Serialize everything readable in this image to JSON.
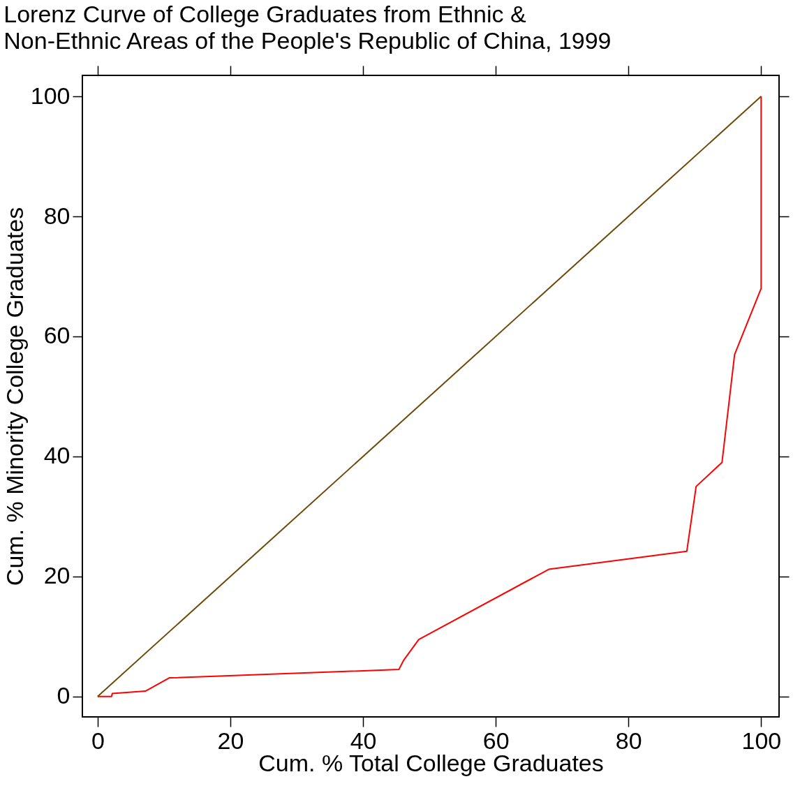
{
  "chart_data": {
    "type": "line",
    "title": [
      "Lorenz Curve of College Graduates from Ethnic &",
      "Non-Ethnic Areas of the People's Republic of China, 1999"
    ],
    "xlabel": "Cum. % Total College Graduates",
    "ylabel": "Cum. % Minority College Graduates",
    "series": [
      {
        "color": "#ff0000",
        "x": [
          0,
          2.1,
          2.2,
          7.2,
          10.8,
          45.4,
          46.1,
          48.4,
          68.0,
          88.8,
          90.2,
          94.1,
          96.0,
          100,
          100,
          100
        ],
        "values": [
          0,
          0,
          0.5,
          0.9,
          3.1,
          4.5,
          6.0,
          9.5,
          21.2,
          24.2,
          35,
          39,
          57,
          68,
          80,
          100
        ]
      },
      {
        "color": "#6b4a0a",
        "x": [
          0,
          100
        ],
        "values": [
          0,
          100
        ]
      }
    ],
    "xlim": [
      -2.3,
      102.7
    ],
    "ylim": [
      -3.4,
      103.5
    ],
    "xticks": [
      0,
      20,
      40,
      60,
      80,
      100
    ],
    "yticks": [
      0,
      20,
      40,
      60,
      80,
      100
    ],
    "grid": false,
    "marker": "none",
    "line_style": "solid"
  }
}
